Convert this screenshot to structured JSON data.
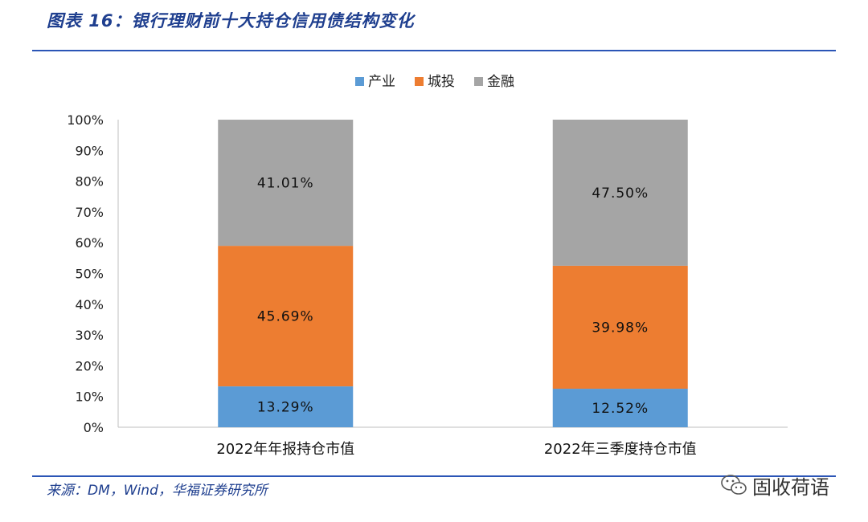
{
  "header": {
    "title": "图表 16：银行理财前十大持仓信用债结构变化"
  },
  "footer": {
    "source": "来源：DM，Wind，华福证券研究所",
    "watermark": "固收荷语",
    "watermark_icon": "wechat-icon"
  },
  "colors": {
    "产业": "#5b9bd5",
    "城投": "#ed7d31",
    "金融": "#a5a5a5",
    "accent": "#1f3f8f",
    "rule": "#2b55b6"
  },
  "chart_data": {
    "type": "bar",
    "stacked": true,
    "title": "",
    "xlabel": "",
    "ylabel": "",
    "ylim": [
      0,
      100
    ],
    "yticks": [
      "0%",
      "10%",
      "20%",
      "30%",
      "40%",
      "50%",
      "60%",
      "70%",
      "80%",
      "90%",
      "100%"
    ],
    "categories": [
      "2022年年报持仓市值",
      "2022年三季度持仓市值"
    ],
    "series": [
      {
        "name": "产业",
        "values": [
          13.29,
          12.52
        ],
        "labels": [
          "13.29%",
          "12.52%"
        ]
      },
      {
        "name": "城投",
        "values": [
          45.69,
          39.98
        ],
        "labels": [
          "45.69%",
          "39.98%"
        ]
      },
      {
        "name": "金融",
        "values": [
          41.01,
          47.5
        ],
        "labels": [
          "41.01%",
          "47.50%"
        ]
      }
    ],
    "legend": "top-center",
    "grid": false
  }
}
